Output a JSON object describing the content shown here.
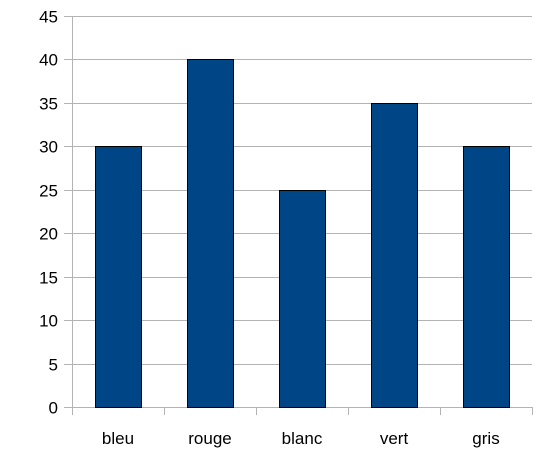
{
  "chart_data": {
    "type": "bar",
    "categories": [
      "bleu",
      "rouge",
      "blanc",
      "vert",
      "gris"
    ],
    "values": [
      30,
      40,
      25,
      35,
      30
    ],
    "title": "",
    "xlabel": "",
    "ylabel": "",
    "ylim": [
      0,
      45
    ],
    "yticks": [
      "0",
      "5",
      "10",
      "15",
      "20",
      "25",
      "30",
      "35",
      "40",
      "45"
    ],
    "grid": true,
    "legend": "none",
    "colors": {
      "bar_fill": "#004586",
      "bar_stroke": "#000000",
      "grid": "#b3b3b3",
      "axis": "#b3b3b3"
    }
  }
}
